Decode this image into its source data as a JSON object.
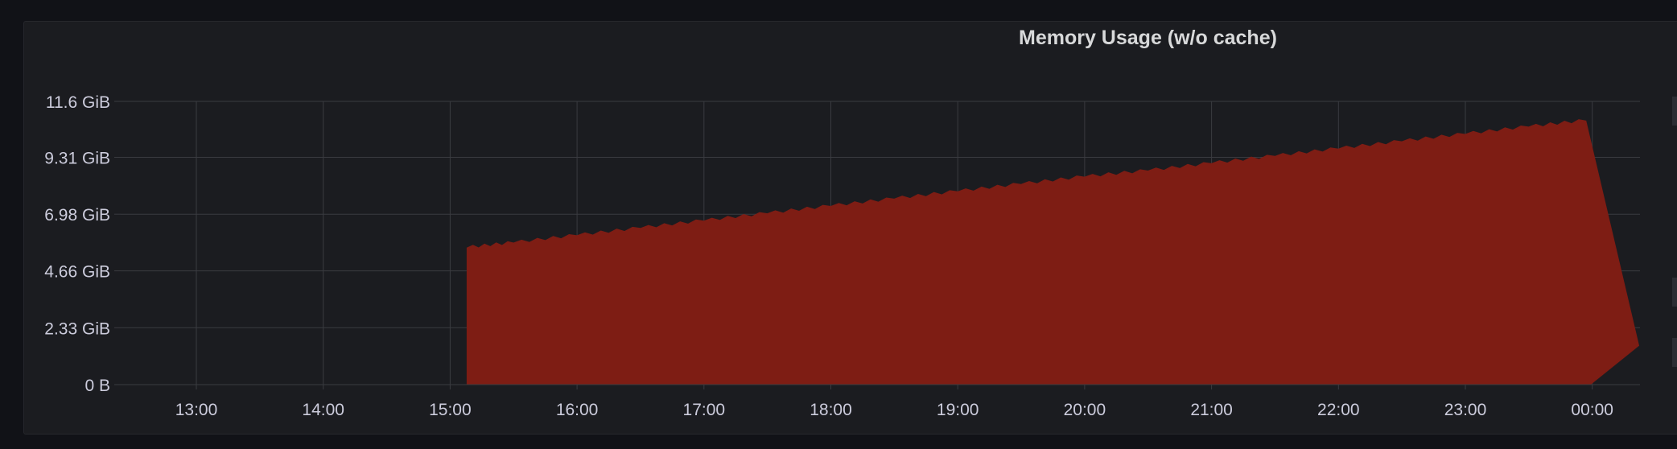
{
  "panel": {
    "title": "Memory Usage (w/o cache)"
  },
  "colors": {
    "background": "#111217",
    "panel": "#1b1c20",
    "grid": "#3a3b40",
    "series_fill": "#7e1d14",
    "text": "#ccccdc"
  },
  "chart_data": {
    "type": "area",
    "title": "Memory Usage (w/o cache)",
    "xlabel": "",
    "ylabel": "",
    "x_tick_labels": [
      "13:00",
      "14:00",
      "15:00",
      "16:00",
      "17:00",
      "18:00",
      "19:00",
      "20:00",
      "21:00",
      "22:00",
      "23:00",
      "00:00"
    ],
    "y_tick_labels": [
      "11.6 GiB",
      "9.31 GiB",
      "6.98 GiB",
      "4.66 GiB",
      "2.33 GiB",
      "0 B"
    ],
    "y_tick_values_gib": [
      11.6,
      9.31,
      6.98,
      4.66,
      2.33,
      0
    ],
    "xlim": [
      "12:24",
      "00:24"
    ],
    "ylim_gib": [
      0,
      11.6
    ],
    "grid": true,
    "legend": "none",
    "series": [
      {
        "unit": "GiB",
        "points": [
          [
            "15:08",
            0
          ],
          [
            "15:08",
            5.6
          ],
          [
            "15:30",
            5.8
          ],
          [
            "16:00",
            6.1
          ],
          [
            "16:30",
            6.4
          ],
          [
            "17:00",
            6.7
          ],
          [
            "17:30",
            7.0
          ],
          [
            "18:00",
            7.3
          ],
          [
            "18:30",
            7.6
          ],
          [
            "19:00",
            7.9
          ],
          [
            "19:30",
            8.2
          ],
          [
            "20:00",
            8.5
          ],
          [
            "20:30",
            8.75
          ],
          [
            "21:00",
            9.05
          ],
          [
            "21:30",
            9.35
          ],
          [
            "22:00",
            9.65
          ],
          [
            "22:30",
            9.95
          ],
          [
            "23:00",
            10.25
          ],
          [
            "23:30",
            10.55
          ],
          [
            "23:57",
            10.8
          ],
          [
            "00:22",
            1.6
          ],
          [
            "23:59",
            0
          ]
        ]
      }
    ]
  }
}
